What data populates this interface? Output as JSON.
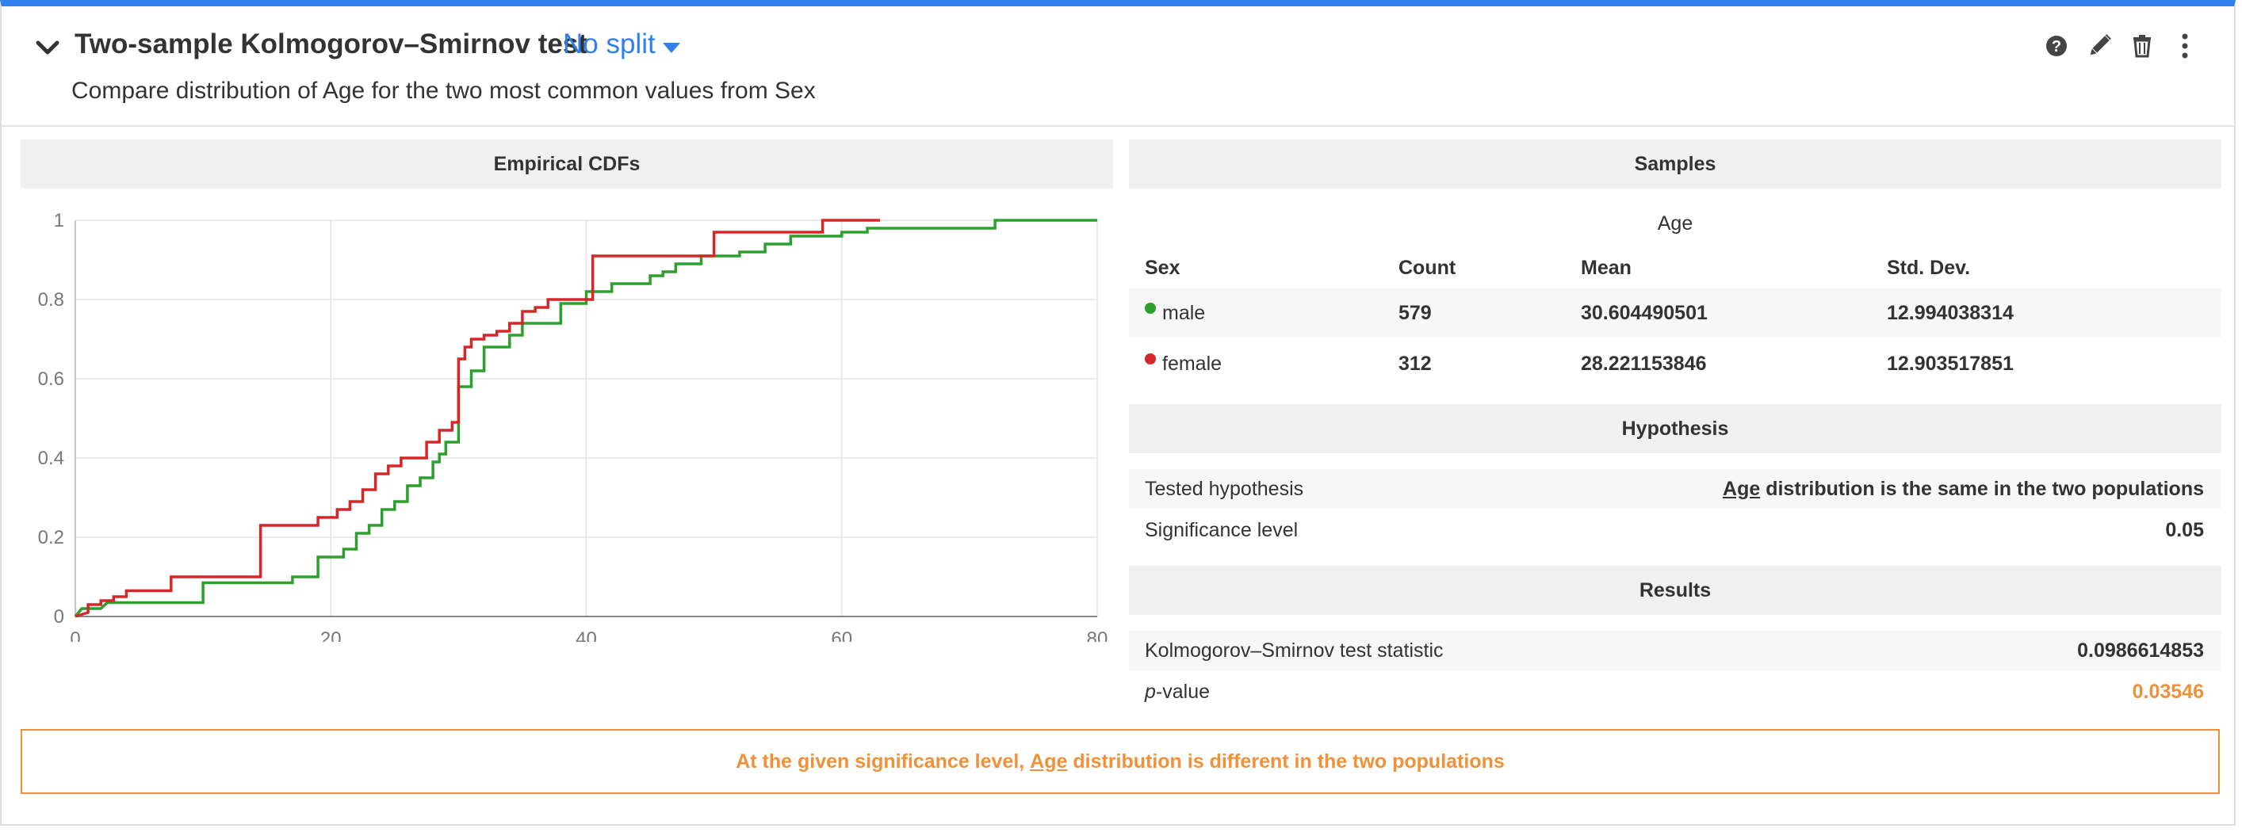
{
  "header": {
    "title": "Two-sample Kolmogorov–Smirnov test",
    "split_label": "No split",
    "subtitle": "Compare distribution of Age for the two most common values from Sex"
  },
  "toolbar_icons": [
    "help-icon",
    "edit-icon",
    "trash-icon",
    "more-vertical-icon"
  ],
  "chart_panel": {
    "title": "Empirical CDFs"
  },
  "chart_data": {
    "type": "line",
    "title": "Empirical CDFs",
    "xlim": [
      0,
      80
    ],
    "ylim": [
      0,
      1
    ],
    "x_ticks": [
      "0",
      "20",
      "40",
      "60",
      "80"
    ],
    "y_ticks": [
      "0",
      "0.2",
      "0.4",
      "0.6",
      "0.8",
      "1"
    ],
    "grid": true,
    "series": [
      {
        "name": "male",
        "color": "#2ca02c",
        "points": [
          [
            0,
            0
          ],
          [
            0.5,
            0.02
          ],
          [
            2,
            0.02
          ],
          [
            2.5,
            0.035
          ],
          [
            10,
            0.035
          ],
          [
            10,
            0.085
          ],
          [
            17,
            0.085
          ],
          [
            17,
            0.1
          ],
          [
            19,
            0.1
          ],
          [
            19,
            0.15
          ],
          [
            21,
            0.15
          ],
          [
            21,
            0.17
          ],
          [
            22,
            0.17
          ],
          [
            22,
            0.21
          ],
          [
            23,
            0.21
          ],
          [
            23,
            0.23
          ],
          [
            24,
            0.23
          ],
          [
            24,
            0.27
          ],
          [
            25,
            0.27
          ],
          [
            25,
            0.29
          ],
          [
            26,
            0.29
          ],
          [
            26,
            0.33
          ],
          [
            27,
            0.33
          ],
          [
            27,
            0.35
          ],
          [
            28,
            0.35
          ],
          [
            28,
            0.39
          ],
          [
            28.5,
            0.39
          ],
          [
            28.5,
            0.41
          ],
          [
            29,
            0.41
          ],
          [
            29,
            0.44
          ],
          [
            30,
            0.44
          ],
          [
            30,
            0.58
          ],
          [
            31,
            0.58
          ],
          [
            31,
            0.62
          ],
          [
            32,
            0.62
          ],
          [
            32,
            0.68
          ],
          [
            34,
            0.68
          ],
          [
            34,
            0.71
          ],
          [
            35,
            0.71
          ],
          [
            35,
            0.74
          ],
          [
            38,
            0.74
          ],
          [
            38,
            0.79
          ],
          [
            40,
            0.79
          ],
          [
            40,
            0.82
          ],
          [
            42,
            0.82
          ],
          [
            42,
            0.84
          ],
          [
            45,
            0.84
          ],
          [
            45,
            0.86
          ],
          [
            46,
            0.86
          ],
          [
            46,
            0.87
          ],
          [
            47,
            0.87
          ],
          [
            47,
            0.89
          ],
          [
            49,
            0.89
          ],
          [
            49,
            0.91
          ],
          [
            52,
            0.91
          ],
          [
            52,
            0.92
          ],
          [
            54,
            0.92
          ],
          [
            54,
            0.94
          ],
          [
            56,
            0.94
          ],
          [
            56,
            0.96
          ],
          [
            60,
            0.96
          ],
          [
            60,
            0.97
          ],
          [
            62,
            0.97
          ],
          [
            62,
            0.98
          ],
          [
            72,
            0.98
          ],
          [
            72,
            1.0
          ],
          [
            80,
            1.0
          ]
        ]
      },
      {
        "name": "female",
        "color": "#d62728",
        "points": [
          [
            0,
            0
          ],
          [
            1,
            0.01
          ],
          [
            1,
            0.03
          ],
          [
            2,
            0.03
          ],
          [
            2,
            0.04
          ],
          [
            3,
            0.04
          ],
          [
            3,
            0.05
          ],
          [
            4,
            0.05
          ],
          [
            4,
            0.065
          ],
          [
            7.5,
            0.065
          ],
          [
            7.5,
            0.1
          ],
          [
            14.5,
            0.1
          ],
          [
            14.5,
            0.23
          ],
          [
            19,
            0.23
          ],
          [
            19,
            0.25
          ],
          [
            20.5,
            0.25
          ],
          [
            20.5,
            0.27
          ],
          [
            21.5,
            0.27
          ],
          [
            21.5,
            0.29
          ],
          [
            22.5,
            0.29
          ],
          [
            22.5,
            0.32
          ],
          [
            23.5,
            0.32
          ],
          [
            23.5,
            0.36
          ],
          [
            24.5,
            0.36
          ],
          [
            24.5,
            0.38
          ],
          [
            25.5,
            0.38
          ],
          [
            25.5,
            0.4
          ],
          [
            27.5,
            0.4
          ],
          [
            27.5,
            0.44
          ],
          [
            28.5,
            0.44
          ],
          [
            28.5,
            0.47
          ],
          [
            29.5,
            0.47
          ],
          [
            29.5,
            0.49
          ],
          [
            30,
            0.49
          ],
          [
            30,
            0.65
          ],
          [
            30.5,
            0.65
          ],
          [
            30.5,
            0.68
          ],
          [
            31,
            0.68
          ],
          [
            31,
            0.7
          ],
          [
            32,
            0.7
          ],
          [
            32,
            0.71
          ],
          [
            33,
            0.71
          ],
          [
            33,
            0.72
          ],
          [
            34,
            0.72
          ],
          [
            34,
            0.74
          ],
          [
            35,
            0.74
          ],
          [
            35,
            0.77
          ],
          [
            36,
            0.77
          ],
          [
            36,
            0.78
          ],
          [
            37,
            0.78
          ],
          [
            37,
            0.8
          ],
          [
            40.5,
            0.8
          ],
          [
            40.5,
            0.91
          ],
          [
            50,
            0.91
          ],
          [
            50,
            0.97
          ],
          [
            58.5,
            0.97
          ],
          [
            58.5,
            1.0
          ],
          [
            63,
            1.0
          ]
        ]
      }
    ]
  },
  "samples": {
    "title": "Samples",
    "group_header": "Age",
    "columns": {
      "sex": "Sex",
      "count": "Count",
      "mean": "Mean",
      "std": "Std. Dev."
    },
    "rows": [
      {
        "sex": "male",
        "color": "#2ca02c",
        "count": "579",
        "mean": "30.604490501",
        "std": "12.994038314"
      },
      {
        "sex": "female",
        "color": "#d62728",
        "count": "312",
        "mean": "28.221153846",
        "std": "12.903517851"
      }
    ]
  },
  "hypothesis": {
    "title": "Hypothesis",
    "tested_label": "Tested hypothesis",
    "tested_var": "Age",
    "tested_rest": " distribution is the same in the two populations",
    "significance_label": "Significance level",
    "significance_value": "0.05"
  },
  "results": {
    "title": "Results",
    "statistic_label": "Kolmogorov–Smirnov test statistic",
    "statistic_value": "0.0986614853",
    "pvalue_label_italic": "p",
    "pvalue_label_rest": "-value",
    "pvalue_value": "0.03546",
    "pvalue_color": "#f0913a"
  },
  "conclusion": {
    "prefix": "At the given significance level, ",
    "var": "Age",
    "suffix": " distribution is different in the two populations",
    "color": "#f0913a"
  },
  "colors": {
    "accent": "#2f80ed",
    "warning": "#f0913a"
  }
}
